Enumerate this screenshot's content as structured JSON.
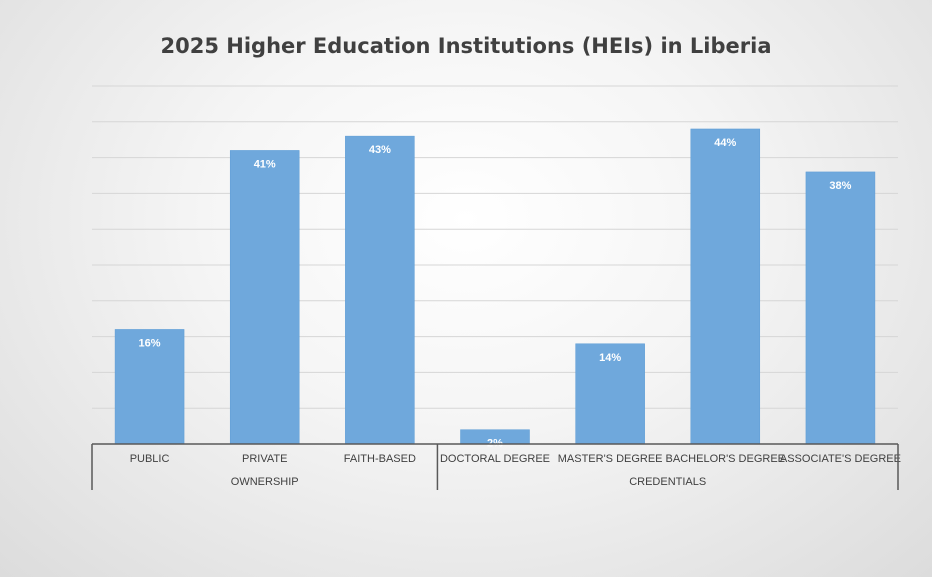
{
  "chart_data": {
    "type": "bar",
    "title": "2025 Higher Education Institutions (HEIs) in Liberia",
    "xlabel": "",
    "ylabel": "",
    "ylim": [
      0,
      50
    ],
    "grid": true,
    "legend": "none",
    "bar_color": "#6fa8dc",
    "groups": [
      {
        "name": "OWNERSHIP",
        "categories": [
          "PUBLIC",
          "PRIVATE",
          "FAITH-BASED"
        ]
      },
      {
        "name": "CREDENTIALS",
        "categories": [
          "DOCTORAL DEGREE",
          "MASTER'S DEGREE",
          "BACHELOR'S DEGREE",
          "ASSOCIATE'S DEGREE"
        ]
      }
    ],
    "categories": [
      "PUBLIC",
      "PRIVATE",
      "FAITH-BASED",
      "DOCTORAL DEGREE",
      "MASTER'S DEGREE",
      "BACHELOR'S DEGREE",
      "ASSOCIATE'S DEGREE"
    ],
    "values": [
      16,
      41,
      43,
      2,
      14,
      44,
      38
    ],
    "data_labels": [
      "16%",
      "41%",
      "43%",
      "2%",
      "14%",
      "44%",
      "38%"
    ]
  }
}
